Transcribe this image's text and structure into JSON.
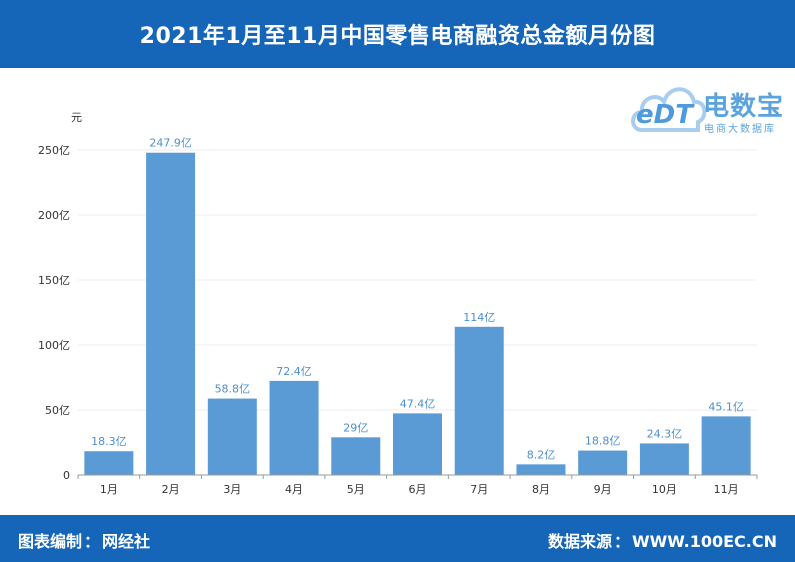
{
  "header": {
    "title": "2021年1月至11月中国零售电商融资总金额月份图"
  },
  "footer": {
    "left_label": "图表编制",
    "left_value": "网经社",
    "right_label": "数据来源",
    "right_value": "WWW.100EC.CN",
    "colon": "："
  },
  "logo": {
    "mark": "eDT",
    "name": "电数宝",
    "subtitle": "电商大数据库"
  },
  "colors": {
    "bar": "#5b9bd5",
    "header_bg": "#1565b8",
    "label": "#4a8fd0",
    "grid": "#ececec"
  },
  "chart_data": {
    "type": "bar",
    "title": "2021年1月至11月中国零售电商融资总金额月份图",
    "ylabel": "元",
    "xlabel": "",
    "categories": [
      "1月",
      "2月",
      "3月",
      "4月",
      "5月",
      "6月",
      "7月",
      "8月",
      "9月",
      "10月",
      "11月"
    ],
    "values": [
      18.3,
      247.9,
      58.8,
      72.4,
      29,
      47.4,
      114,
      8.2,
      18.8,
      24.3,
      45.1
    ],
    "value_labels": [
      "18.3亿",
      "247.9亿",
      "58.8亿",
      "72.4亿",
      "29亿",
      "47.4亿",
      "114亿",
      "8.2亿",
      "18.8亿",
      "24.3亿",
      "45.1亿"
    ],
    "ylim": [
      0,
      250
    ],
    "yticks": [
      0,
      50,
      100,
      150,
      200,
      250
    ],
    "ytick_labels": [
      "0",
      "50亿",
      "100亿",
      "150亿",
      "200亿",
      "250亿"
    ],
    "grid": true,
    "legend": "none"
  }
}
